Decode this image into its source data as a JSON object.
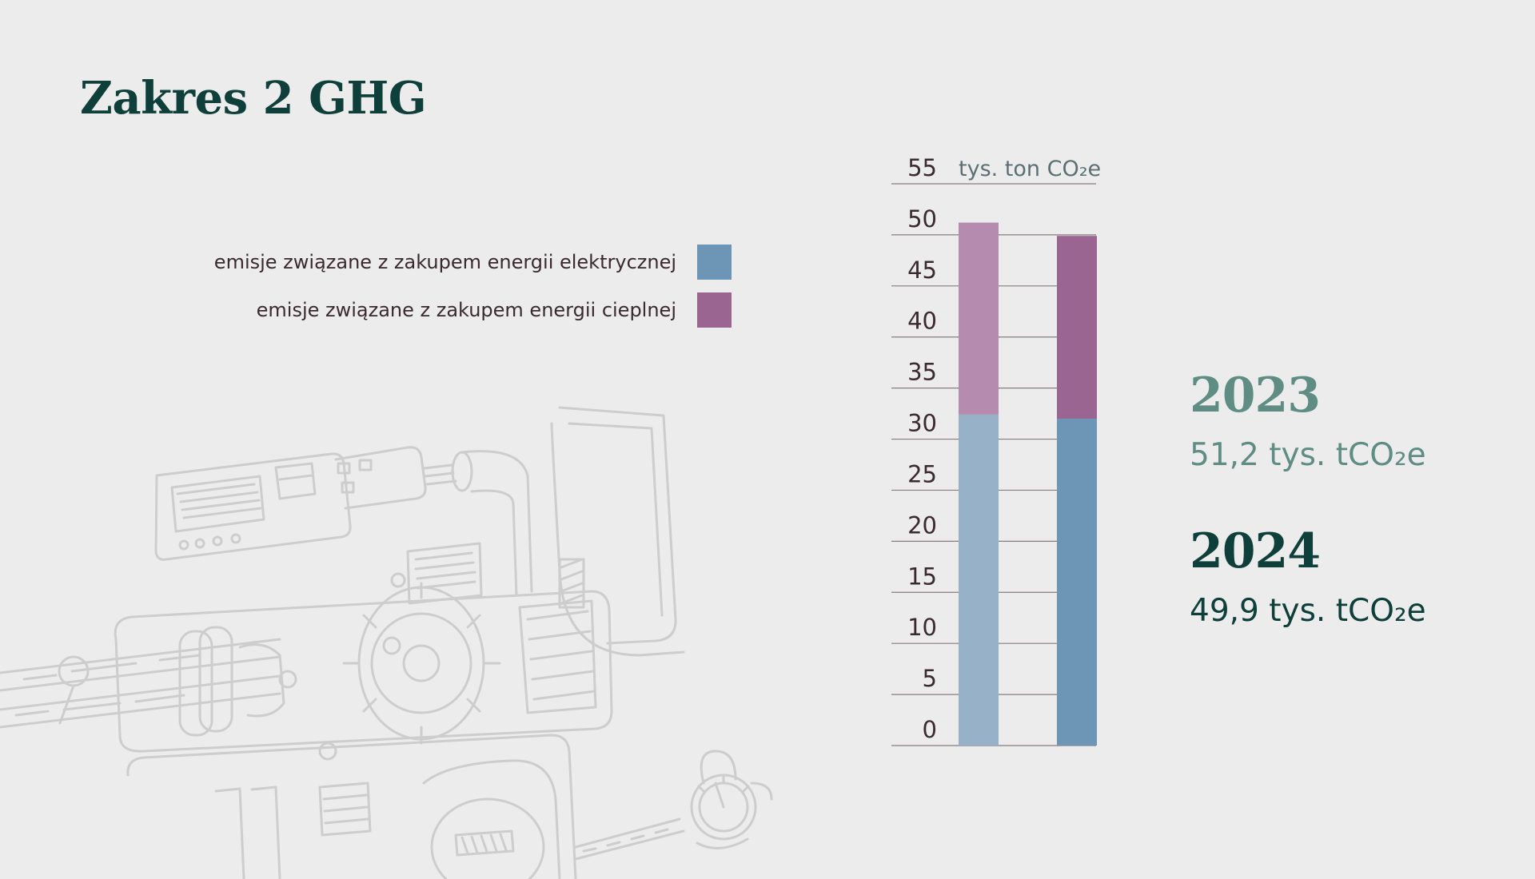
{
  "title": "Zakres 2 GHG",
  "legend": [
    {
      "label": "emisje związane z zakupem energii elektrycznej",
      "color": "#6d95b6"
    },
    {
      "label": "emisje związane z zakupem energii cieplnej",
      "color": "#9a6591"
    }
  ],
  "summary": [
    {
      "year": "2023",
      "value": "51,2 tys. tCO₂e",
      "color": "#5f8d84"
    },
    {
      "year": "2024",
      "value": "49,9 tys. tCO₂e",
      "color": "#0f3f3a"
    }
  ],
  "chart_data": {
    "type": "bar",
    "stacked": true,
    "categories": [
      "2023",
      "2024"
    ],
    "series": [
      {
        "name": "emisje związane z zakupem energii elektrycznej",
        "values": [
          32.4,
          32.0
        ],
        "colors": [
          "#96b1c8",
          "#6d95b6"
        ]
      },
      {
        "name": "emisje związane z zakupem energii cieplnej",
        "values": [
          18.8,
          17.9
        ],
        "colors": [
          "#b58cb0",
          "#9a6591"
        ]
      }
    ],
    "unit_label": "tys. ton CO₂e",
    "yticks": [
      0,
      5,
      10,
      15,
      20,
      25,
      30,
      35,
      40,
      45,
      50,
      55
    ],
    "ylim": [
      0,
      55
    ],
    "grid": true,
    "legend_position": "top-left"
  }
}
